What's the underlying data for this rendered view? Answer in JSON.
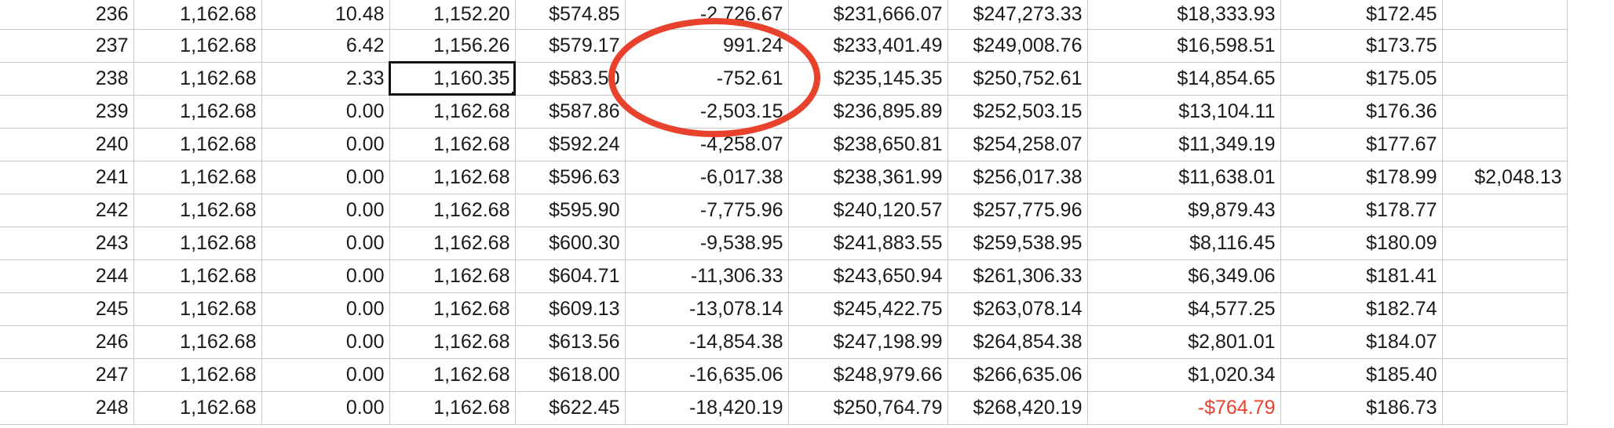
{
  "spreadsheet": {
    "rows": [
      {
        "cells": [
          "236",
          "1,162.68",
          "10.48",
          "1,152.20",
          "$574.85",
          "-2,726.67",
          "$231,666.07",
          "$247,273.33",
          "$18,333.93",
          "$172.45",
          ""
        ]
      },
      {
        "cells": [
          "237",
          "1,162.68",
          "6.42",
          "1,156.26",
          "$579.17",
          "991.24",
          "$233,401.49",
          "$249,008.76",
          "$16,598.51",
          "$173.75",
          ""
        ]
      },
      {
        "cells": [
          "238",
          "1,162.68",
          "2.33",
          "1,160.35",
          "$583.50",
          "-752.61",
          "$235,145.35",
          "$250,752.61",
          "$14,854.65",
          "$175.05",
          ""
        ]
      },
      {
        "cells": [
          "239",
          "1,162.68",
          "0.00",
          "1,162.68",
          "$587.86",
          "-2,503.15",
          "$236,895.89",
          "$252,503.15",
          "$13,104.11",
          "$176.36",
          ""
        ]
      },
      {
        "cells": [
          "240",
          "1,162.68",
          "0.00",
          "1,162.68",
          "$592.24",
          "-4,258.07",
          "$238,650.81",
          "$254,258.07",
          "$11,349.19",
          "$177.67",
          ""
        ]
      },
      {
        "cells": [
          "241",
          "1,162.68",
          "0.00",
          "1,162.68",
          "$596.63",
          "-6,017.38",
          "$238,361.99",
          "$256,017.38",
          "$11,638.01",
          "$178.99",
          "$2,048.13"
        ]
      },
      {
        "cells": [
          "242",
          "1,162.68",
          "0.00",
          "1,162.68",
          "$595.90",
          "-7,775.96",
          "$240,120.57",
          "$257,775.96",
          "$9,879.43",
          "$178.77",
          ""
        ]
      },
      {
        "cells": [
          "243",
          "1,162.68",
          "0.00",
          "1,162.68",
          "$600.30",
          "-9,538.95",
          "$241,883.55",
          "$259,538.95",
          "$8,116.45",
          "$180.09",
          ""
        ]
      },
      {
        "cells": [
          "244",
          "1,162.68",
          "0.00",
          "1,162.68",
          "$604.71",
          "-11,306.33",
          "$243,650.94",
          "$261,306.33",
          "$6,349.06",
          "$181.41",
          ""
        ]
      },
      {
        "cells": [
          "245",
          "1,162.68",
          "0.00",
          "1,162.68",
          "$609.13",
          "-13,078.14",
          "$245,422.75",
          "$263,078.14",
          "$4,577.25",
          "$182.74",
          ""
        ]
      },
      {
        "cells": [
          "246",
          "1,162.68",
          "0.00",
          "1,162.68",
          "$613.56",
          "-14,854.38",
          "$247,198.99",
          "$264,854.38",
          "$2,801.01",
          "$184.07",
          ""
        ]
      },
      {
        "cells": [
          "247",
          "1,162.68",
          "0.00",
          "1,162.68",
          "$618.00",
          "-16,635.06",
          "$248,979.66",
          "$266,635.06",
          "$1,020.34",
          "$185.40",
          ""
        ]
      },
      {
        "cells": [
          "248",
          "1,162.68",
          "0.00",
          "1,162.68",
          "$622.45",
          "-18,420.19",
          "$250,764.79",
          "$268,420.19",
          "-$764.79",
          "$186.73",
          ""
        ]
      }
    ],
    "selected_cell": {
      "row": 2,
      "col": 3
    },
    "negative_cells": [
      {
        "row": 12,
        "col": 8
      }
    ]
  },
  "annotation": {
    "shape": "ellipse",
    "stroke_color": "#e8412c"
  },
  "colors": {
    "text": "#1a1a1a",
    "negative": "#e8412c",
    "gridline": "#c9c9c9",
    "selection": "#111111"
  }
}
